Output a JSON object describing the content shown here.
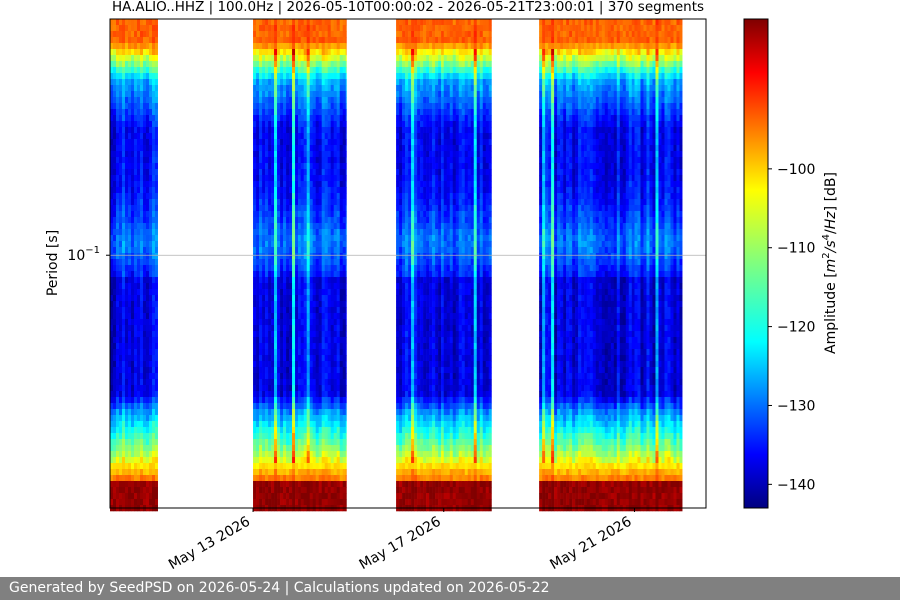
{
  "chart_data": {
    "type": "heatmap",
    "title": "HA.ALIO..HHZ | 100.0Hz | 2026-05-10T00:00:02 - 2026-05-21T23:00:01 | 370 segments",
    "ylabel": "Period [s]",
    "y_scale": "log",
    "y_inverted": true,
    "ylim": [
      0.02,
      0.45
    ],
    "y_ticks": [
      {
        "value": 0.1,
        "base": "10",
        "exp": "−1"
      },
      {
        "value": 1,
        "base": "10",
        "exp": "0"
      },
      {
        "value": 10,
        "base": "10",
        "exp": "1"
      },
      {
        "value": 100,
        "base": "10",
        "exp": "2"
      }
    ],
    "x_type": "date",
    "xlim": [
      "2026-05-10T00:00:00",
      "2026-05-22T12:00:00"
    ],
    "x_ticks": [
      {
        "date": "2026-05-13",
        "label": "May 13 2026"
      },
      {
        "date": "2026-05-17",
        "label": "May 17 2026"
      },
      {
        "date": "2026-05-21",
        "label": "May 21 2026"
      }
    ],
    "grid": "horizontal",
    "data_segments": [
      {
        "start": "2026-05-10T00:00:00",
        "end": "2026-05-11T00:00:00"
      },
      {
        "start": "2026-05-13T00:00:00",
        "end": "2026-05-14T00:00:00"
      },
      {
        "start": "2026-05-14T00:00:00",
        "end": "2026-05-14T23:00:00"
      },
      {
        "start": "2026-05-16T00:00:00",
        "end": "2026-05-17T00:00:00"
      },
      {
        "start": "2026-05-17T00:00:00",
        "end": "2026-05-18T00:00:00"
      },
      {
        "start": "2026-05-19T00:00:00",
        "end": "2026-05-20T00:00:00"
      },
      {
        "start": "2026-05-20T00:00:00",
        "end": "2026-05-21T00:00:00"
      },
      {
        "start": "2026-05-21T00:00:00",
        "end": "2026-05-22T00:00:00"
      }
    ],
    "colorbar": {
      "label_parts": [
        "Amplitude [",
        "m",
        "2",
        "/s",
        "4",
        "/",
        "Hz",
        "] [dB]"
      ],
      "colormap": "jet",
      "range": [
        -143,
        -81
      ],
      "ticks": [
        -100,
        -110,
        -120,
        -130,
        -140
      ],
      "tick_labels": [
        "−100",
        "−110",
        "−120",
        "−130",
        "−140"
      ]
    }
  },
  "footer": {
    "text": "Generated by SeedPSD on 2026-05-24 | Calculations updated on 2026-05-22",
    "background": "#808080"
  }
}
